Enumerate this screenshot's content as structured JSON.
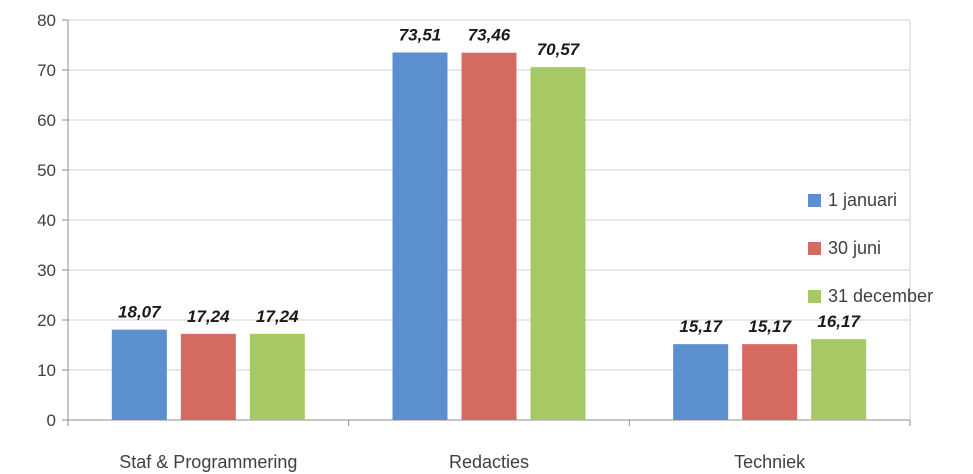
{
  "chart_data": {
    "type": "bar",
    "categories": [
      "Staf & Programmering",
      "Redacties",
      "Techniek"
    ],
    "series": [
      {
        "name": "1 januari",
        "values": [
          18.07,
          73.51,
          15.17
        ],
        "labels": [
          "18,07",
          "73,51",
          "15,17"
        ]
      },
      {
        "name": "30 juni",
        "values": [
          17.24,
          73.46,
          15.17
        ],
        "labels": [
          "17,24",
          "73,46",
          "15,17"
        ]
      },
      {
        "name": "31 december",
        "values": [
          17.24,
          70.57,
          16.17
        ],
        "labels": [
          "17,24",
          "70,57",
          "16,17"
        ]
      }
    ],
    "colors": [
      "#5b8fd0",
      "#d56a61",
      "#a6c966"
    ],
    "ylim": [
      0,
      80
    ],
    "yticks": [
      "0",
      "10",
      "20",
      "30",
      "40",
      "50",
      "60",
      "70",
      "80"
    ],
    "grid": true,
    "legend_position": "right",
    "title": "",
    "xlabel": "",
    "ylabel": ""
  }
}
